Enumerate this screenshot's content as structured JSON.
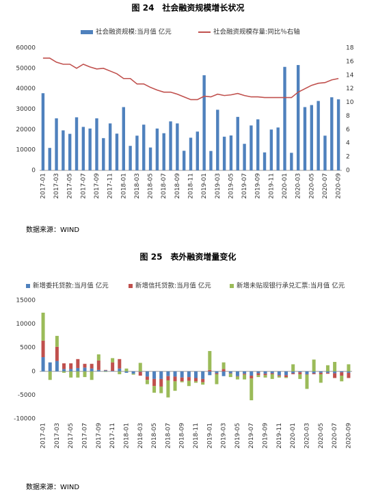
{
  "chart_data": [
    {
      "type": "combo",
      "title": "图 24　社会融资规模增长状况",
      "source": "数据来源：WIND",
      "categories": [
        "2017-01",
        null,
        "2017-03",
        null,
        "2017-05",
        null,
        "2017-07",
        null,
        "2017-09",
        null,
        "2017-11",
        null,
        "2018-01",
        null,
        "2018-03",
        null,
        "2018-05",
        null,
        "2018-07",
        null,
        "2018-09",
        null,
        "2018-11",
        null,
        "2019-01",
        null,
        "2019-03",
        null,
        "2019-05",
        null,
        "2019-07",
        null,
        "2019-09",
        null,
        "2019-11",
        null,
        "2020-01",
        null,
        "2020-03",
        null,
        "2020-05",
        null,
        "2020-07",
        null,
        "2020-09"
      ],
      "ylim": [
        0,
        60000
      ],
      "yticks": [
        0,
        10000,
        20000,
        30000,
        40000,
        50000,
        60000
      ],
      "y2lim": [
        0,
        18
      ],
      "y2ticks": [
        0,
        2,
        4,
        6,
        8,
        10,
        12,
        14,
        16,
        18
      ],
      "series": [
        {
          "name": "社会融资规模:当月值 亿元",
          "type": "bar",
          "color": "#4f81bd",
          "values": [
            37800,
            11000,
            25500,
            19600,
            17900,
            26000,
            21300,
            20500,
            25500,
            15800,
            23000,
            18000,
            31000,
            12000,
            17000,
            22400,
            11200,
            20500,
            18200,
            24000,
            23000,
            9600,
            16000,
            19000,
            46600,
            9500,
            29700,
            16500,
            17100,
            26200,
            13000,
            22000,
            25000,
            8800,
            20000,
            21000,
            50700,
            8600,
            51600,
            31000,
            32000,
            34000,
            17000,
            35800,
            34800
          ]
        },
        {
          "name": "社会融资规模存量:同比％右轴",
          "type": "line",
          "axis": "y2",
          "color": "#c0504d",
          "values": [
            16.5,
            16.5,
            15.9,
            15.6,
            15.6,
            15.0,
            15.6,
            15.2,
            14.9,
            15.0,
            14.6,
            14.2,
            13.5,
            13.5,
            12.7,
            12.7,
            12.2,
            11.8,
            11.5,
            11.5,
            11.2,
            10.8,
            10.4,
            10.4,
            10.9,
            10.8,
            11.2,
            11.0,
            11.1,
            11.3,
            11.0,
            10.8,
            10.8,
            10.7,
            10.7,
            10.7,
            10.7,
            10.7,
            11.5,
            12.0,
            12.5,
            12.8,
            12.9,
            13.3,
            13.5
          ]
        }
      ]
    },
    {
      "type": "stacked_bar",
      "title": "图 25　表外融资增量变化",
      "source": "数据来源：WIND",
      "categories": [
        "2017-01",
        null,
        "2017-03",
        null,
        "2017-05",
        null,
        "2017-07",
        null,
        "2017-09",
        null,
        "2017-11",
        null,
        "2018-01",
        null,
        "2018-03",
        null,
        "2018-05",
        null,
        "2018-07",
        null,
        "2018-09",
        null,
        "2018-11",
        null,
        "2019-01",
        null,
        "2019-03",
        null,
        "2019-05",
        null,
        "2019-07",
        null,
        "2019-09",
        null,
        "2019-11",
        null,
        "2020-01",
        null,
        "2020-03",
        null,
        "2020-05",
        null,
        "2020-07",
        null,
        "2020-09"
      ],
      "ylim": [
        -10000,
        15000
      ],
      "yticks": [
        -10000,
        -5000,
        0,
        5000,
        10000,
        15000
      ],
      "series": [
        {
          "name": "新增委托贷款:当月值 亿元",
          "color": "#4f81bd",
          "values": [
            3000,
            1900,
            2200,
            500,
            500,
            700,
            800,
            600,
            300,
            200,
            100,
            600,
            -300,
            -500,
            -100,
            -1100,
            -1600,
            -1600,
            -1000,
            -1100,
            -1300,
            -1200,
            -1400,
            -1600,
            -800,
            -400,
            -1000,
            -400,
            -1000,
            -500,
            -900,
            -400,
            -500,
            -400,
            -800,
            -800,
            -400,
            -200,
            -600,
            -400,
            -300,
            -300,
            -400,
            -200,
            -300
          ]
        },
        {
          "name": "新增信托贷款:当月值 亿元",
          "color": "#c0504d",
          "values": [
            3500,
            0,
            3000,
            1200,
            1200,
            1900,
            800,
            1000,
            2000,
            100,
            1800,
            2000,
            0,
            0,
            -800,
            -700,
            -1500,
            -1600,
            -900,
            -1000,
            -800,
            -800,
            -700,
            -700,
            300,
            -200,
            500,
            -100,
            -100,
            -200,
            -600,
            -400,
            -300,
            -200,
            -200,
            -400,
            -200,
            -400,
            -100,
            -200,
            -300,
            -200,
            -1000,
            -700,
            -1100
          ]
        },
        {
          "name": "新增未贴现银行承兑汇票:当月值 亿元",
          "color": "#9bbb59",
          "values": [
            5900,
            -1800,
            2300,
            -300,
            -1300,
            -1300,
            -1200,
            -1800,
            1300,
            -100,
            900,
            -600,
            600,
            -200,
            1800,
            -900,
            -1400,
            -1400,
            -3600,
            -2000,
            -200,
            -1100,
            -300,
            -500,
            4000,
            -2100,
            1400,
            -700,
            -600,
            -1000,
            -4600,
            -400,
            -500,
            -1000,
            -300,
            -200,
            1500,
            -1000,
            -3000,
            2500,
            -1800,
            1300,
            2000,
            -1200,
            1500
          ]
        }
      ]
    }
  ]
}
